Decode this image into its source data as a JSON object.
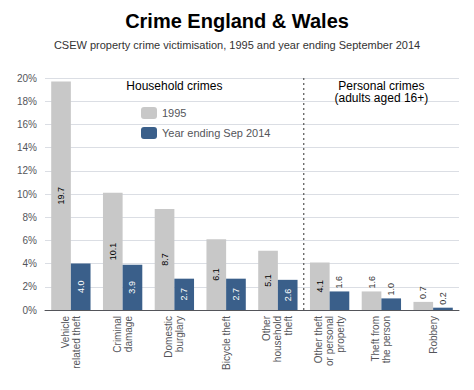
{
  "chart_data": {
    "type": "bar",
    "title": "Crime England & Wales",
    "subtitle": "CSEW property crime victimisation, 1995 and year ending September 2014",
    "categories": [
      "Vehicle\nrelated theft",
      "Criminal\ndamage",
      "Domestic\nburglary",
      "Bicycle theft",
      "Other\nhousehold\ntheft",
      "Other theft\nor personal\nproperty",
      "Theft from\nthe person",
      "Robbery"
    ],
    "series": [
      {
        "name": "1995",
        "color": "#c8c8c8",
        "values": [
          19.7,
          10.1,
          8.7,
          6.1,
          5.1,
          4.1,
          1.6,
          0.7
        ],
        "value_labels": [
          "19.7",
          "10.1",
          "8.7",
          "6.1",
          "5.1",
          "4.1",
          "1.6",
          "0.7"
        ]
      },
      {
        "name": "Year ending Sep 2014",
        "color": "#3a5f8a",
        "values": [
          4.0,
          3.9,
          2.7,
          2.7,
          2.6,
          1.6,
          1.0,
          0.2
        ],
        "value_labels": [
          "4.0",
          "3.9",
          "2.7",
          "2.7",
          "2.6",
          "1.6",
          "1.0",
          "0.2"
        ]
      }
    ],
    "ylim": [
      0,
      20
    ],
    "yticks": [
      {
        "value": 0,
        "label": "0%"
      },
      {
        "value": 2,
        "label": "2%"
      },
      {
        "value": 4,
        "label": "4%"
      },
      {
        "value": 6,
        "label": "6%"
      },
      {
        "value": 8,
        "label": "8%"
      },
      {
        "value": 10,
        "label": "10%"
      },
      {
        "value": 12,
        "label": "12%"
      },
      {
        "value": 14,
        "label": "14%"
      },
      {
        "value": 16,
        "label": "16%"
      },
      {
        "value": 18,
        "label": "18%"
      },
      {
        "value": 20,
        "label": "20%"
      }
    ],
    "grid": true,
    "legend": "upper left",
    "data_labels": true,
    "annotations": [
      {
        "text": "Household crimes",
        "from": "Vehicle\nrelated theft",
        "to": "Other\nhousehold\ntheft"
      },
      {
        "text": "Personal crimes\n(adults aged 16+)",
        "from": "Other theft\nor personal\nproperty",
        "to": "Robbery"
      }
    ]
  }
}
